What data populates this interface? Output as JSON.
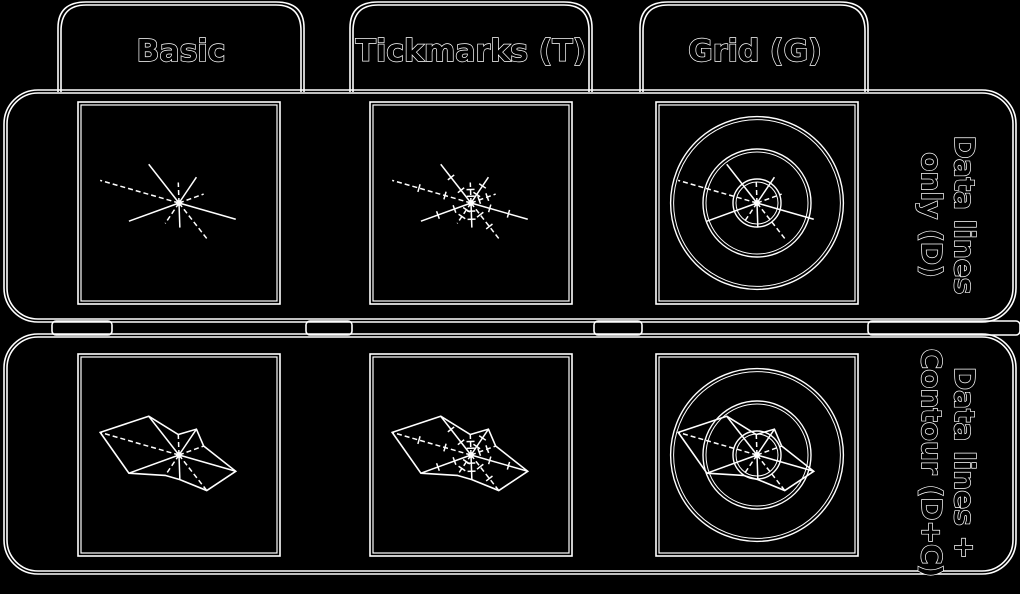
{
  "columns": [
    {
      "label": "Basic",
      "key": "basic"
    },
    {
      "label": "Tickmarks (T)",
      "key": "tickmarks"
    },
    {
      "label": "Grid (G)",
      "key": "grid"
    }
  ],
  "rows": [
    {
      "label": "Data lines\nonly (D)",
      "key": "data-lines-only"
    },
    {
      "label": "Data lines +\nContour (D+C)",
      "key": "data-lines-contour"
    }
  ],
  "colors": {
    "background": "#000000",
    "stroke": "#ffffff"
  },
  "radar": {
    "axis_count": 10,
    "values": [
      0.6,
      0.25,
      0.38,
      0.32,
      0.72,
      0.55,
      0.3,
      0.3,
      0.65,
      1.0
    ],
    "grid_rings": [
      0.2,
      0.45,
      0.72
    ]
  }
}
